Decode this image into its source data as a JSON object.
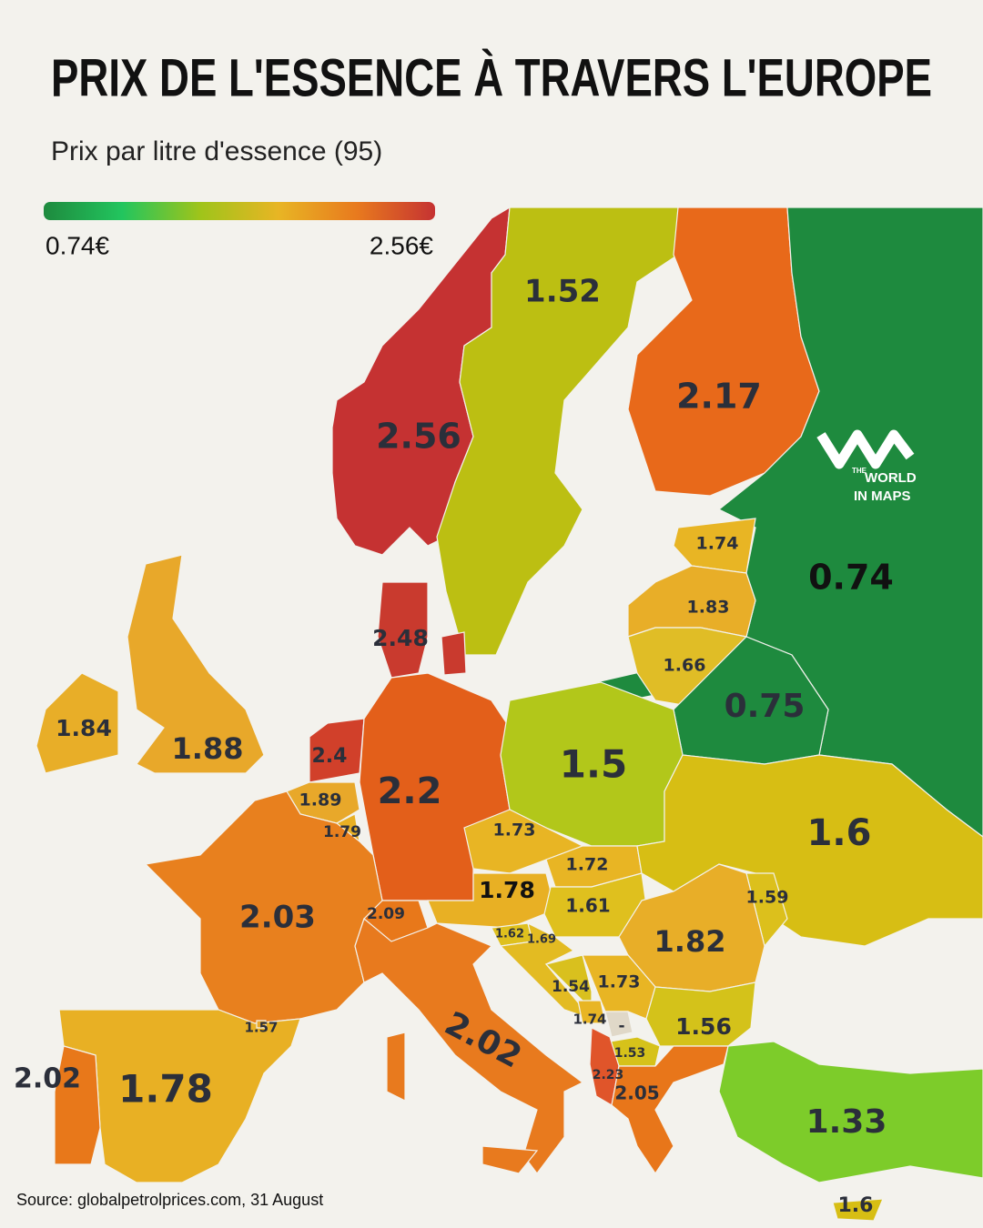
{
  "title": "PRIX DE L'ESSENCE À TRAVERS L'EUROPE",
  "subtitle": "Prix par litre d'essence (95)",
  "legend": {
    "min_label": "0.74€",
    "max_label": "2.56€",
    "colors": [
      "#1e8a3e",
      "#22c55e",
      "#9fc41a",
      "#e8b524",
      "#e87a1e",
      "#c53232"
    ]
  },
  "logo": {
    "line1": "THE",
    "line2": "WORLD",
    "line3": "IN MAPS"
  },
  "source": "Source: globalpetrolprices.com, 31 August",
  "regions": [
    {
      "value": 2.56,
      "color": "#c53232"
    },
    {
      "value": 1.52,
      "color": "#bcbf12"
    },
    {
      "value": 2.17,
      "color": "#e8691a"
    },
    {
      "value": 0.74,
      "color": "#1e8a3e"
    },
    {
      "value": 1.74,
      "color": "#e8b524"
    },
    {
      "value": 1.83,
      "color": "#e8ae28"
    },
    {
      "value": 1.66,
      "color": "#e0bd26"
    },
    {
      "value": 0.75,
      "color": "#1e8a3e"
    },
    {
      "value": 2.48,
      "color": "#c93a2e"
    },
    {
      "value": 1.84,
      "color": "#e8ae28"
    },
    {
      "value": 1.88,
      "color": "#e8a82a"
    },
    {
      "value": 2.4,
      "color": "#d1402a"
    },
    {
      "value": 1.89,
      "color": "#e8a82a"
    },
    {
      "value": 1.79,
      "color": "#e8b024"
    },
    {
      "value": 2.2,
      "color": "#e35f1a"
    },
    {
      "value": 1.5,
      "color": "#b2c71a"
    },
    {
      "value": 1.73,
      "color": "#e8b524"
    },
    {
      "value": 1.72,
      "color": "#e8b524"
    },
    {
      "value": 1.78,
      "color": "#e8b024"
    },
    {
      "value": 1.61,
      "color": "#dfc01e"
    },
    {
      "value": 1.6,
      "color": "#d7be14"
    },
    {
      "value": 1.59,
      "color": "#dcc01c"
    },
    {
      "value": 1.82,
      "color": "#e8ae28"
    },
    {
      "value": 2.09,
      "color": "#e8781a"
    },
    {
      "value": 2.03,
      "color": "#e8801e"
    },
    {
      "value": 1.62,
      "color": "#dfc01e"
    },
    {
      "value": 1.69,
      "color": "#e3bb22"
    },
    {
      "value": 1.54,
      "color": "#d9c01e"
    },
    {
      "value": 1.73,
      "color": "#e8b524"
    },
    {
      "value": 1.74,
      "color": "#e8b524"
    },
    {
      "value": "-",
      "color": "#e0d8c8"
    },
    {
      "value": 1.53,
      "color": "#d6c21a"
    },
    {
      "value": 1.56,
      "color": "#d4c21a"
    },
    {
      "value": 2.23,
      "color": "#e0552a"
    },
    {
      "value": 2.05,
      "color": "#e8761a"
    },
    {
      "value": 2.02,
      "color": "#e87a1e"
    },
    {
      "value": 1.78,
      "color": "#e8b024"
    },
    {
      "value": 2.02,
      "color": "#e8781a"
    },
    {
      "value": 1.57,
      "color": "#e8a82a"
    },
    {
      "value": 1.33,
      "color": "#7dcc2a"
    },
    {
      "value": 1.6,
      "color": "#d7be14"
    }
  ]
}
